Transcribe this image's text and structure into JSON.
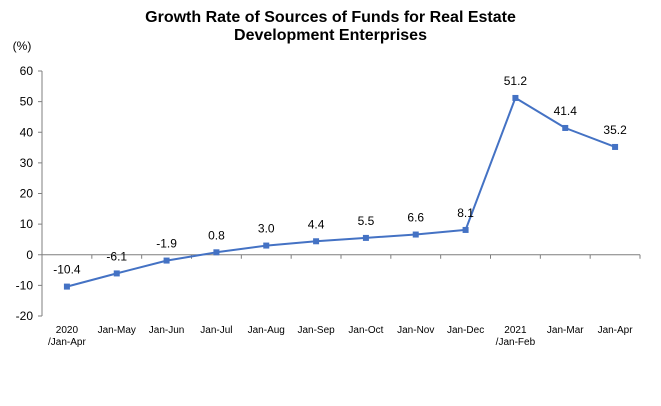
{
  "chart_data": {
    "type": "line",
    "title_line1": "Growth Rate of Sources of Funds for Real Estate",
    "title_line2": "Development Enterprises",
    "ylabel": "(%)",
    "xlabel": "",
    "ylim": [
      -20,
      60
    ],
    "yticks": [
      "60",
      "50",
      "40",
      "30",
      "20",
      "10",
      "0",
      "-10",
      "-20"
    ],
    "grid": false,
    "legend": "none",
    "color": "#4472C4",
    "categories": [
      [
        "2020",
        "/Jan-Apr"
      ],
      [
        "Jan-May"
      ],
      [
        "Jan-Jun"
      ],
      [
        "Jan-Jul"
      ],
      [
        "Jan-Aug"
      ],
      [
        "Jan-Sep"
      ],
      [
        "Jan-Oct"
      ],
      [
        "Jan-Nov"
      ],
      [
        "Jan-Dec"
      ],
      [
        "2021",
        "/Jan-Feb"
      ],
      [
        "Jan-Mar"
      ],
      [
        "Jan-Apr"
      ]
    ],
    "values": [
      -10.4,
      -6.1,
      -1.9,
      0.8,
      3.0,
      4.4,
      5.5,
      6.6,
      8.1,
      51.2,
      41.4,
      35.2
    ],
    "data_labels": [
      "-10.4",
      "-6.1",
      "-1.9",
      "0.8",
      "3.0",
      "4.4",
      "5.5",
      "6.6",
      "8.1",
      "51.2",
      "41.4",
      "35.2"
    ]
  }
}
